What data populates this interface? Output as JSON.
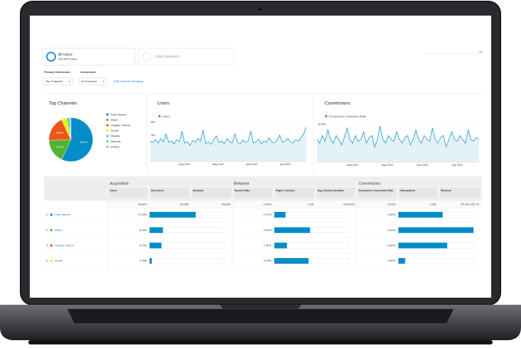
{
  "segments": {
    "primary_name": "All Users",
    "primary_detail": "100.00% Users",
    "add": "+ Add Segment"
  },
  "dimensions": {
    "primary_label": "Primary Dimension:",
    "primary_value": "Top Channels",
    "conversion_label": "Conversion:",
    "conversion_value": "eCommerce",
    "edit_link": "Edit Channel Grouping"
  },
  "top_channels": {
    "title": "Top Channels",
    "categories": [
      "Paid Search",
      "Direct",
      "Organic Search",
      "Social",
      "Display",
      "Referral",
      "(Other)"
    ],
    "colors": [
      "#058dc7",
      "#50b432",
      "#ed561b",
      "#edef00",
      "#24cbe5",
      "#64e572",
      "#ff9655"
    ],
    "values": [
      56.9,
      17.5,
      18.6,
      4.1,
      1.5,
      0.9,
      0.5
    ],
    "value_labels": [
      "56.9%",
      "17.5%",
      "18.6%",
      null,
      null,
      null,
      null
    ]
  },
  "users_chart": {
    "title": "Users",
    "legend": "Users",
    "color": "#058dc7",
    "ylim": [
      0,
      600
    ],
    "yticks": [
      600,
      400,
      200
    ],
    "x_labels": [
      "April 2022",
      "May 2022",
      "June 2022",
      "July 2022"
    ],
    "values": [
      310,
      290,
      330,
      280,
      350,
      300,
      420,
      290,
      310,
      270,
      330,
      300,
      460,
      280,
      300,
      240,
      320,
      290,
      350,
      310,
      480,
      270,
      300,
      260,
      330,
      390,
      290,
      310,
      270,
      350,
      300,
      280,
      420,
      300,
      260,
      330,
      290,
      310,
      460,
      280,
      300,
      340,
      270,
      310,
      290,
      360,
      300,
      280,
      330,
      400,
      290,
      310,
      350,
      300,
      280,
      330,
      310,
      360,
      420,
      520
    ]
  },
  "conversions_chart": {
    "title": "Conversions",
    "legend": "Ecommerce Conversion Rate",
    "color": "#058dc7",
    "ylim": [
      0,
      10
    ],
    "yticks": [
      {
        "value": 10,
        "label": "10.00%"
      },
      {
        "value": 5,
        "label": "5.00%"
      }
    ],
    "x_labels": [
      "April 2022",
      "May 2022",
      "June 2022",
      "July 2022"
    ],
    "values": [
      6,
      5,
      7,
      5.5,
      8.5,
      6,
      5,
      7,
      6,
      4.5,
      6.5,
      9,
      6,
      5,
      7,
      5.5,
      6,
      8,
      5,
      6.5,
      7,
      4,
      6,
      9.5,
      6,
      5,
      7,
      6,
      5.5,
      8,
      6,
      5,
      6.5,
      7,
      4.5,
      6,
      8.5,
      6,
      5,
      7,
      6,
      5.5,
      9,
      6,
      5,
      6.5,
      7,
      4,
      6,
      8,
      6,
      5.5,
      7,
      6,
      5,
      8.5,
      6,
      5.5,
      6.5,
      6
    ]
  },
  "table": {
    "groups": [
      "Acquisition",
      "Behavior",
      "Conversions"
    ],
    "headers": [
      "Users",
      "New Users",
      "Sessions",
      "Bounce Rate",
      "Pages / Session",
      "Avg. Session Duration",
      "Ecommerce Conversion Rate",
      "Transactions",
      "Revenue"
    ],
    "totals": [
      "33,873",
      "33,095",
      "54,835",
      "2.04%",
      "7.38",
      "00:00:02",
      "4.01%",
      "2,201",
      "₹2,741,492.72"
    ],
    "rows": [
      {
        "rank": "1",
        "channel": "Paid Search",
        "color": "#058dc7",
        "users": "21,050",
        "new_users_pct": 62,
        "bounce_rate": "1.27%",
        "pages_pct": 15,
        "conversion_rate": "3.62%",
        "transactions_pct": 59
      },
      {
        "rank": "2",
        "channel": "Direct",
        "color": "#50b432",
        "users": "6,281",
        "new_users_pct": 18,
        "bounce_rate": "3.93%",
        "pages_pct": 48,
        "conversion_rate": "5.90%",
        "transactions_pct": 100
      },
      {
        "rank": "3",
        "channel": "Organic Search",
        "color": "#ed561b",
        "users": "5,752",
        "new_users_pct": 16,
        "bounce_rate": "1.40%",
        "pages_pct": 17,
        "conversion_rate": "3.90%",
        "transactions_pct": 65
      },
      {
        "rank": "4",
        "channel": "Social",
        "color": "#edef00",
        "users": "1,396",
        "new_users_pct": 3,
        "bounce_rate": "3.78%",
        "pages_pct": 46,
        "conversion_rate": "0.60%",
        "transactions_pct": 9
      }
    ]
  }
}
